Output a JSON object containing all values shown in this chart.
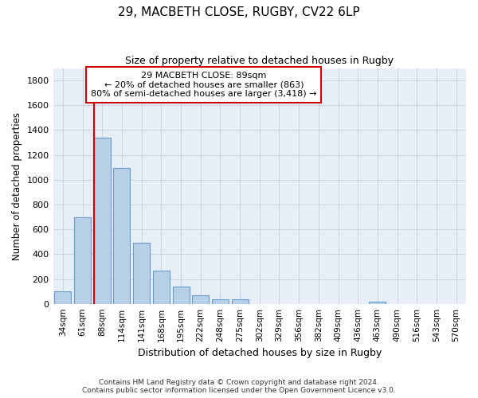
{
  "title1": "29, MACBETH CLOSE, RUGBY, CV22 6LP",
  "title2": "Size of property relative to detached houses in Rugby",
  "xlabel": "Distribution of detached houses by size in Rugby",
  "ylabel": "Number of detached properties",
  "categories": [
    "34sqm",
    "61sqm",
    "88sqm",
    "114sqm",
    "141sqm",
    "168sqm",
    "195sqm",
    "222sqm",
    "248sqm",
    "275sqm",
    "302sqm",
    "329sqm",
    "356sqm",
    "382sqm",
    "409sqm",
    "436sqm",
    "463sqm",
    "490sqm",
    "516sqm",
    "543sqm",
    "570sqm"
  ],
  "values": [
    100,
    700,
    1340,
    1095,
    490,
    270,
    140,
    70,
    35,
    35,
    0,
    0,
    0,
    0,
    0,
    0,
    20,
    0,
    0,
    0,
    0
  ],
  "bar_color": "#b8cfe8",
  "bar_edge_color": "#6699cc",
  "vline_color": "#cc0000",
  "vline_xidx": 2,
  "annotation_line1": "29 MACBETH CLOSE: 89sqm",
  "annotation_line2": "← 20% of detached houses are smaller (863)",
  "annotation_line3": "80% of semi-detached houses are larger (3,418) →",
  "annotation_box_color": "white",
  "annotation_box_edge_color": "#cc0000",
  "ylim": [
    0,
    1900
  ],
  "yticks": [
    0,
    200,
    400,
    600,
    800,
    1000,
    1200,
    1400,
    1600,
    1800
  ],
  "grid_color": "#c8d0dc",
  "bg_color": "#e8eef8",
  "title_fontsize": 11,
  "subtitle_fontsize": 9,
  "footnote1": "Contains HM Land Registry data © Crown copyright and database right 2024.",
  "footnote2": "Contains public sector information licensed under the Open Government Licence v3.0."
}
